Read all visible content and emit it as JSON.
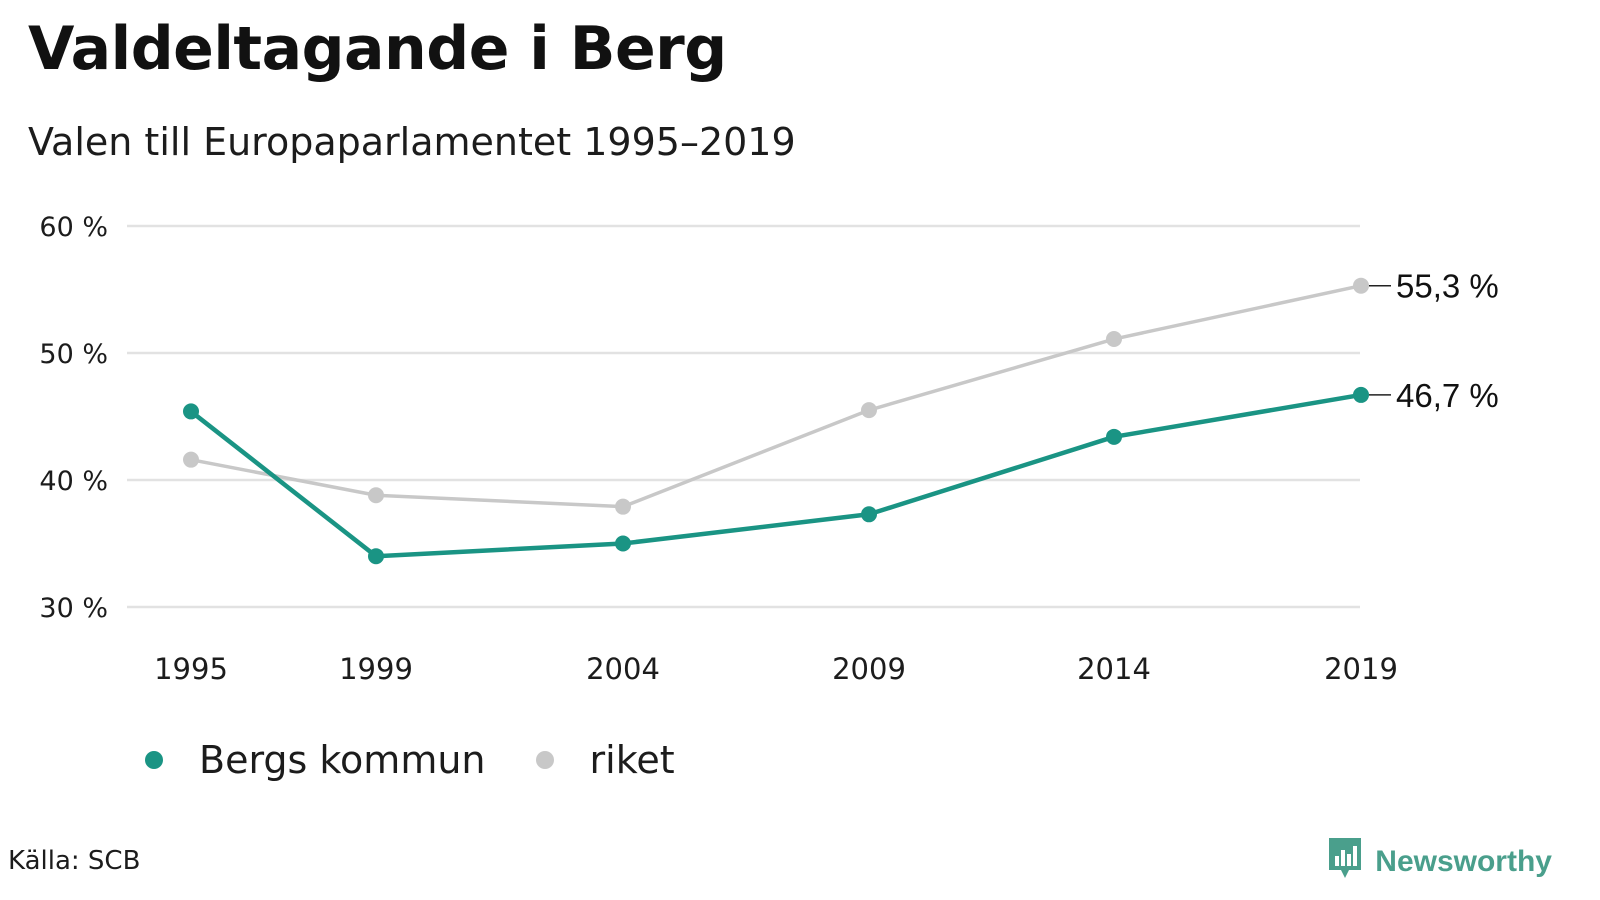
{
  "title": "Valdeltagande i Berg",
  "subtitle": "Valen till Europaparlamentet 1995–2019",
  "source": "Källa: SCB",
  "brand": {
    "name": "Newsworthy",
    "color": "#4a9f8c",
    "icon": "bar-chart-badge-icon"
  },
  "legend": [
    {
      "label": "Bergs kommun",
      "color": "#1a9484"
    },
    {
      "label": "riket",
      "color": "#c8c8c8"
    }
  ],
  "chart_data": {
    "type": "line",
    "x": [
      "1995",
      "1999",
      "2004",
      "2009",
      "2014",
      "2019"
    ],
    "x_values": [
      1995,
      1999,
      2004,
      2009,
      2014,
      2019
    ],
    "ylim": [
      30,
      60
    ],
    "yticks": [
      30,
      40,
      50,
      60
    ],
    "ytick_labels": [
      "30 %",
      "40 %",
      "50 %",
      "60 %"
    ],
    "grid": true,
    "legend_position": "bottom-left",
    "series": [
      {
        "name": "riket",
        "color": "#c8c8c8",
        "values": [
          41.6,
          38.8,
          37.9,
          45.5,
          51.1,
          55.3
        ],
        "end_label": "55,3 %"
      },
      {
        "name": "Bergs kommun",
        "color": "#1a9484",
        "values": [
          45.4,
          34.0,
          35.0,
          37.3,
          43.4,
          46.7
        ],
        "end_label": "46,7 %"
      }
    ]
  }
}
